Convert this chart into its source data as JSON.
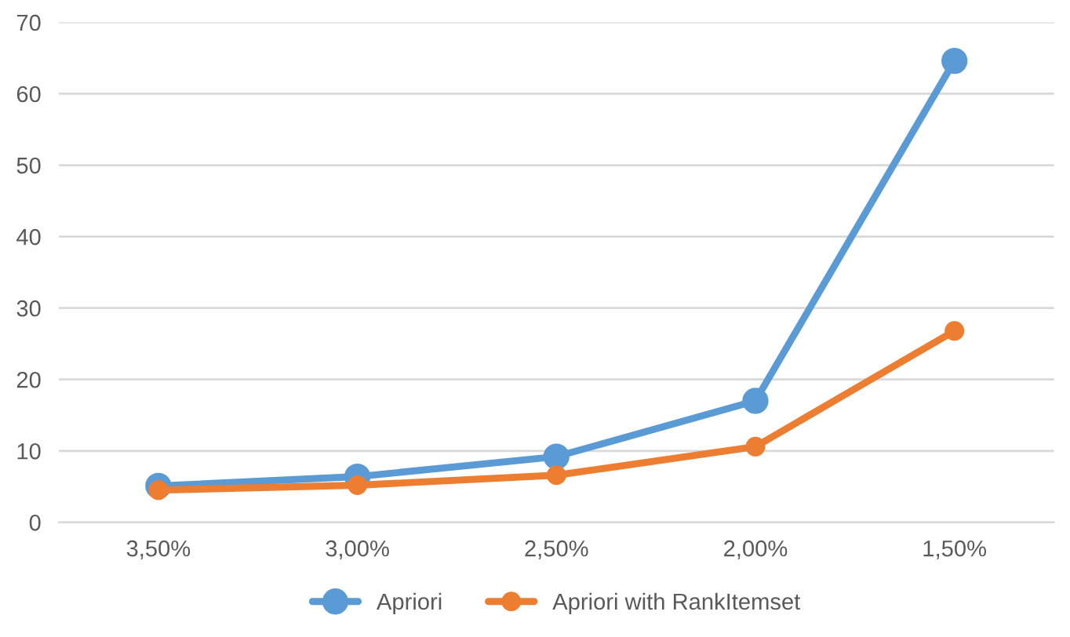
{
  "chart_data": {
    "type": "line",
    "categories": [
      "3,50%",
      "3,00%",
      "2,50%",
      "2,00%",
      "1,50%"
    ],
    "series": [
      {
        "name": "Apriori",
        "color": "#5b9bd5",
        "values": [
          5.1,
          6.4,
          9.2,
          17.0,
          64.6
        ]
      },
      {
        "name": "Apriori with RankItemset",
        "color": "#ed7d31",
        "values": [
          4.5,
          5.2,
          6.6,
          10.6,
          26.8
        ]
      }
    ],
    "ylim": [
      0,
      70
    ],
    "yticks": [
      0,
      10,
      20,
      30,
      40,
      50,
      60,
      70
    ],
    "grid": "y",
    "legend": "bottom",
    "marker": "circle",
    "line_style": "solid"
  }
}
